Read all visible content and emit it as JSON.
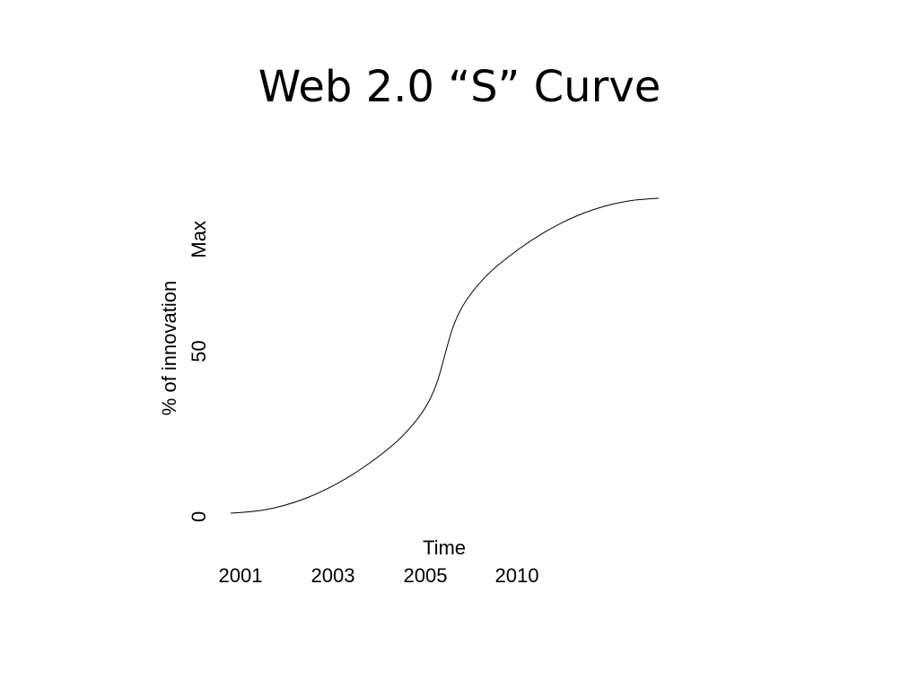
{
  "slide": {
    "title": "Web 2.0 “S” Curve"
  },
  "chart_data": {
    "type": "line",
    "title": "Web 2.0 “S” Curve",
    "xlabel": "Time",
    "ylabel": "% of innovation",
    "x_tick_labels": [
      "2001",
      "2003",
      "2005",
      "2010"
    ],
    "y_ticks": [
      {
        "label": "0",
        "value": 0
      },
      {
        "label": "50",
        "value": 50
      },
      {
        "label": "Max",
        "value": 100
      }
    ],
    "ylim": [
      0,
      100
    ],
    "grid": false,
    "legend": "none",
    "series": [
      {
        "points": [
          [
            0,
            0
          ],
          [
            0.05,
            0.4
          ],
          [
            0.1,
            1.5
          ],
          [
            0.15,
            3.4
          ],
          [
            0.2,
            6.0
          ],
          [
            0.25,
            9.4
          ],
          [
            0.3,
            13.5
          ],
          [
            0.35,
            18.4
          ],
          [
            0.4,
            24.0
          ],
          [
            0.45,
            32.0
          ],
          [
            0.48,
            40.0
          ],
          [
            0.5,
            50.0
          ],
          [
            0.52,
            60.0
          ],
          [
            0.55,
            68.0
          ],
          [
            0.6,
            76.0
          ],
          [
            0.65,
            81.6
          ],
          [
            0.7,
            86.5
          ],
          [
            0.75,
            90.6
          ],
          [
            0.8,
            94.0
          ],
          [
            0.85,
            96.6
          ],
          [
            0.9,
            98.5
          ],
          [
            0.95,
            99.6
          ],
          [
            1.0,
            100
          ]
        ],
        "color": "#000000"
      }
    ]
  }
}
